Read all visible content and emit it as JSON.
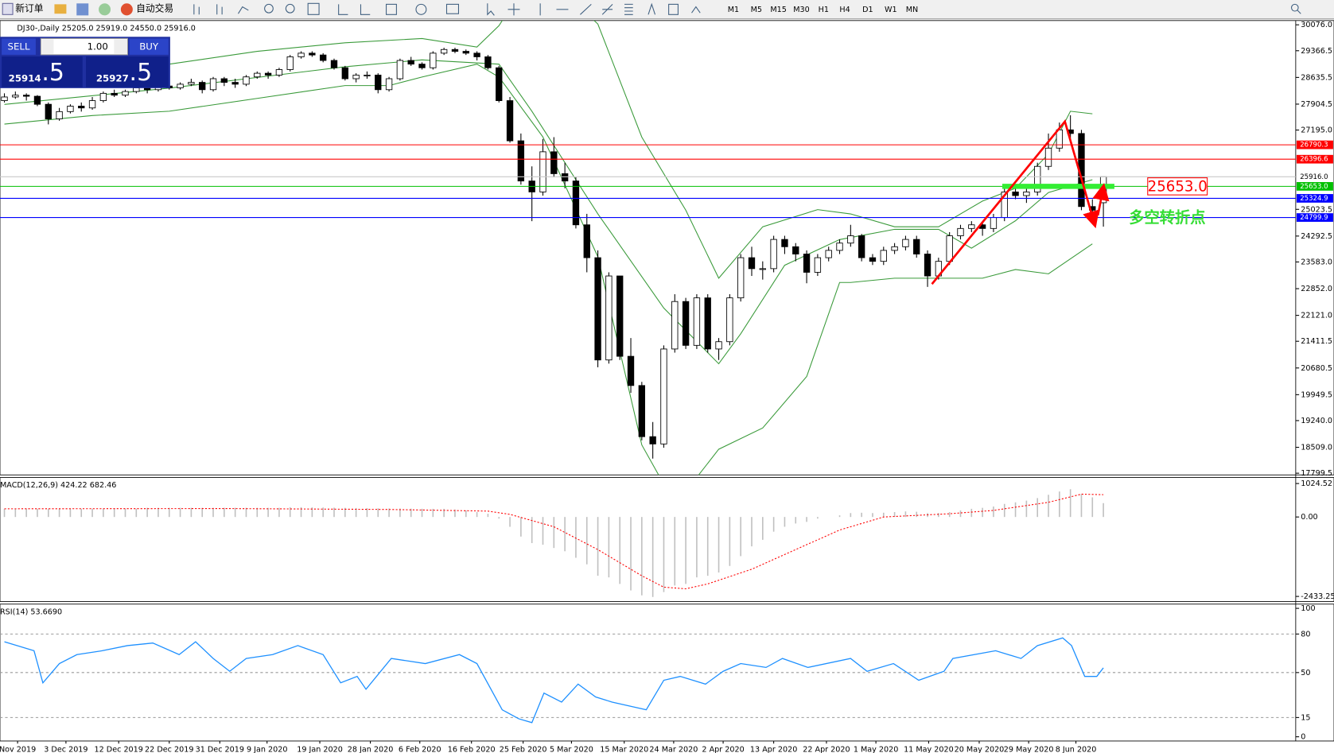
{
  "toolbar": {
    "new_order": "新订单",
    "auto_trading": "自动交易",
    "timeframes": [
      "M1",
      "M5",
      "M15",
      "M30",
      "H1",
      "H4",
      "D1",
      "W1",
      "MN"
    ]
  },
  "trade_panel": {
    "sell": "SELL",
    "lot": "1.00",
    "buy": "BUY",
    "sell_price": [
      "25914",
      ".5"
    ],
    "buy_price": [
      "25927",
      ".5"
    ]
  },
  "chart_data": [
    {
      "type": "candlestick",
      "title": "DJ30-,Daily  25205.0 25919.0 24550.0 25916.0",
      "xlim": [
        -0.4,
        117.5
      ],
      "ylim": [
        17753,
        30193
      ],
      "open": [
        28000,
        28100,
        28150,
        28120,
        27900,
        27500,
        27700,
        27850,
        27800,
        28000,
        28200,
        28150,
        28250,
        28350,
        28300,
        28400,
        28350,
        28450,
        28500,
        28300,
        28600,
        28500,
        28450,
        28650,
        28750,
        28700,
        28850,
        29200,
        29300,
        29250,
        29100,
        28900,
        28600,
        28700,
        28700,
        28300,
        28600,
        29100,
        29000,
        28900,
        29300,
        29400,
        29350,
        29300,
        29200,
        28900,
        28000,
        26900,
        25800,
        25500,
        26600,
        26000,
        25800,
        24600,
        23700,
        20900,
        23200,
        21000,
        20200,
        18800,
        18600,
        21200,
        22500,
        21300,
        22600,
        21200,
        21400,
        22600,
        23700,
        23400,
        23400,
        24200,
        24000,
        23800,
        23300,
        23700,
        23900,
        24100,
        24300,
        23700,
        23600,
        23900,
        24000,
        24200,
        23800,
        23200,
        23600,
        24300,
        24500,
        24600,
        24500,
        24800,
        25500,
        25400,
        25500,
        26200,
        26700,
        27200,
        27100,
        25100,
        25205
      ],
      "high": [
        28200,
        28250,
        28200,
        28150,
        27950,
        27800,
        27900,
        27950,
        28100,
        28250,
        28300,
        28300,
        28400,
        28400,
        28450,
        28450,
        28500,
        28600,
        28550,
        28650,
        28650,
        28600,
        28700,
        28800,
        28800,
        28900,
        29250,
        29350,
        29350,
        29300,
        29150,
        28950,
        28750,
        28800,
        28750,
        28650,
        29150,
        29200,
        29050,
        29350,
        29450,
        29450,
        29400,
        29350,
        29250,
        28950,
        28100,
        27100,
        26200,
        26950,
        27000,
        26300,
        25900,
        24900,
        23900,
        23300,
        23200,
        21500,
        20300,
        19200,
        21300,
        22700,
        22600,
        22700,
        22700,
        21500,
        22700,
        23800,
        24000,
        23600,
        24300,
        24300,
        24100,
        23900,
        23800,
        24000,
        24200,
        24600,
        24350,
        23800,
        24000,
        24100,
        24300,
        24300,
        23900,
        23700,
        24400,
        24600,
        24700,
        24700,
        24900,
        25600,
        25700,
        25600,
        26300,
        27100,
        27400,
        27600,
        27200,
        25300,
        25919
      ],
      "low": [
        27950,
        28050,
        28000,
        27850,
        27350,
        27450,
        27650,
        27700,
        27750,
        27950,
        28100,
        28100,
        28200,
        28200,
        28250,
        28300,
        28300,
        28400,
        28200,
        28250,
        28400,
        28350,
        28400,
        28600,
        28600,
        28650,
        28800,
        29150,
        29200,
        29050,
        28850,
        28550,
        28500,
        28600,
        28200,
        28250,
        28550,
        28950,
        28850,
        28850,
        29250,
        29300,
        29250,
        29100,
        28850,
        27950,
        26850,
        25700,
        24700,
        25400,
        25900,
        25600,
        24500,
        23300,
        20700,
        20800,
        20900,
        20000,
        18700,
        18200,
        18500,
        21100,
        21200,
        21200,
        21100,
        20900,
        21300,
        22500,
        23200,
        23100,
        23300,
        23800,
        23600,
        23000,
        23200,
        23600,
        23800,
        24000,
        23600,
        23500,
        23500,
        23800,
        23900,
        23700,
        22900,
        23100,
        23500,
        24200,
        24400,
        24300,
        24400,
        24700,
        25300,
        25200,
        25400,
        26100,
        26600,
        26900,
        25000,
        24700,
        24550
      ],
      "close": [
        28100,
        28150,
        28120,
        27900,
        27500,
        27700,
        27850,
        27800,
        28000,
        28200,
        28150,
        28250,
        28350,
        28300,
        28400,
        28350,
        28450,
        28500,
        28300,
        28600,
        28500,
        28450,
        28650,
        28750,
        28700,
        28850,
        29200,
        29300,
        29250,
        29100,
        28900,
        28600,
        28700,
        28700,
        28300,
        28600,
        29100,
        29000,
        28900,
        29300,
        29400,
        29350,
        29300,
        29200,
        28900,
        28000,
        26900,
        25800,
        25500,
        26600,
        26000,
        25800,
        24600,
        23700,
        20900,
        23200,
        21000,
        20200,
        18800,
        18600,
        21200,
        22500,
        21300,
        22600,
        21200,
        21400,
        22600,
        23700,
        23400,
        23400,
        24200,
        24000,
        23800,
        23300,
        23700,
        23900,
        24100,
        24300,
        23700,
        23600,
        23900,
        24000,
        24200,
        23800,
        23200,
        23600,
        24300,
        24500,
        24600,
        24500,
        24800,
        25500,
        25400,
        25500,
        26200,
        26700,
        27200,
        27100,
        25100,
        25000,
        25916
      ],
      "yticks": [
        {
          "value": 30076,
          "label": "30076.0"
        },
        {
          "value": 29366.5,
          "label": "29366.5"
        },
        {
          "value": 28635.5,
          "label": "28635.5"
        },
        {
          "value": 27904.5,
          "label": "27904.5"
        },
        {
          "value": 27195,
          "label": "27195.0"
        },
        {
          "value": 25023.5,
          "label": "25023.5"
        },
        {
          "value": 24292.5,
          "label": "24292.5"
        },
        {
          "value": 23583,
          "label": "23583.0"
        },
        {
          "value": 22852,
          "label": "22852.0"
        },
        {
          "value": 22121,
          "label": "22121.0"
        },
        {
          "value": 21411.5,
          "label": "21411.5"
        },
        {
          "value": 20680.5,
          "label": "20680.5"
        },
        {
          "value": 19949.5,
          "label": "19949.5"
        },
        {
          "value": 19240,
          "label": "19240.0"
        },
        {
          "value": 18509,
          "label": "18509.0"
        },
        {
          "value": 17799.5,
          "label": "17799.5"
        }
      ],
      "xticks": [
        {
          "value": 1.2,
          "label": "Nov 2019"
        },
        {
          "value": 5.6,
          "label": "3 Dec 2019"
        },
        {
          "value": 10.4,
          "label": "12 Dec 2019"
        },
        {
          "value": 15,
          "label": "22 Dec 2019"
        },
        {
          "value": 19.6,
          "label": "31 Dec 2019"
        },
        {
          "value": 23.9,
          "label": "9 Jan 2020"
        },
        {
          "value": 28.7,
          "label": "19 Jan 2020"
        },
        {
          "value": 33.3,
          "label": "28 Jan 2020"
        },
        {
          "value": 37.8,
          "label": "6 Feb 2020"
        },
        {
          "value": 42.5,
          "label": "16 Feb 2020"
        },
        {
          "value": 47.2,
          "label": "25 Feb 2020"
        },
        {
          "value": 51.6,
          "label": "5 Mar 2020"
        },
        {
          "value": 56.4,
          "label": "15 Mar 2020"
        },
        {
          "value": 60.9,
          "label": "24 Mar 2020"
        },
        {
          "value": 65.4,
          "label": "2 Apr 2020"
        },
        {
          "value": 70,
          "label": "13 Apr 2020"
        },
        {
          "value": 74.8,
          "label": "22 Apr 2020"
        },
        {
          "value": 79.3,
          "label": "1 May 2020"
        },
        {
          "value": 84.1,
          "label": "11 May 2020"
        },
        {
          "value": 88.7,
          "label": "20 May 2020"
        },
        {
          "value": 93.2,
          "label": "29 May 2020"
        },
        {
          "value": 97.5,
          "label": "8 Jun 2020"
        }
      ],
      "overlays": [
        {
          "color": "#3a9a3a",
          "x": [
            0,
            8,
            15,
            23,
            31,
            38,
            43,
            45,
            46,
            50,
            54,
            58,
            62,
            65,
            69,
            74,
            77,
            81,
            85,
            89,
            92,
            95,
            97,
            99
          ],
          "values": [
            28412,
            28530,
            28998,
            29349,
            29584,
            29701,
            29467,
            30053,
            30521,
            31200,
            30100,
            27000,
            25000,
            23140,
            24546,
            25015,
            24898,
            24546,
            24546,
            25249,
            25601,
            26538,
            27710,
            27640
          ]
        },
        {
          "color": "#3a9a3a",
          "x": [
            0,
            15,
            31,
            38,
            45,
            48,
            54,
            60,
            65,
            67,
            71,
            76,
            81,
            85,
            88,
            92,
            95,
            99
          ],
          "values": [
            27897,
            28342,
            28928,
            29115,
            28998,
            27710,
            24900,
            22321,
            20796,
            21618,
            23492,
            24195,
            24476,
            24476,
            23961,
            24711,
            25484,
            25835
          ]
        },
        {
          "color": "#3a9a3a",
          "x": [
            0,
            8,
            15,
            23,
            31,
            35,
            38,
            43,
            45,
            49,
            54,
            58,
            60,
            62,
            65,
            69,
            73,
            76,
            77,
            81,
            85,
            89,
            92,
            95,
            99
          ],
          "values": [
            27358,
            27592,
            27710,
            28061,
            28412,
            28412,
            28647,
            28998,
            28647,
            27007,
            23727,
            18572,
            17500,
            17300,
            18455,
            19040,
            20446,
            23023,
            23023,
            23140,
            23140,
            23140,
            23375,
            23258,
            24078
          ]
        }
      ],
      "levels": [
        {
          "value": 26790.3,
          "color": "#ff0000"
        },
        {
          "value": 26396.6,
          "color": "#ff0000"
        },
        {
          "value": 25916,
          "label": "25916.0",
          "color": "#c8c8c8"
        },
        {
          "value": 25653,
          "label": "25653.0",
          "color": "#00c000"
        },
        {
          "value": 25324.9,
          "color": "#0000ff"
        },
        {
          "value": 24799.9,
          "color": "#0000ff"
        }
      ],
      "zone": {
        "from": 90.8,
        "to": 101,
        "value": 25653,
        "color": "#33ee33"
      },
      "marker_label": {
        "value": 25653,
        "label": "25653.0",
        "color": "#ff0000"
      },
      "note": "多空转折点",
      "arrows": [
        {
          "color": "#ff0000",
          "x": [
            84.4,
            96.5,
            99.2
          ],
          "values": [
            22977,
            27428,
            24617
          ]
        },
        {
          "color": "#ff0000",
          "x": [
            99.5,
            100
          ],
          "values": [
            24860,
            25630
          ]
        }
      ]
    },
    {
      "type": "histogram",
      "title": "MACD(12,26,9) 424.22 682.46",
      "color": "#c0c0c0",
      "values": [
        250,
        250,
        250,
        250,
        250,
        250,
        250,
        250,
        250,
        250,
        250,
        250,
        250,
        280,
        280,
        280,
        280,
        280,
        280,
        280,
        280,
        280,
        280,
        280,
        280,
        280,
        300,
        300,
        295,
        290,
        285,
        280,
        275,
        270,
        265,
        260,
        258,
        255,
        252,
        250,
        250,
        230,
        200,
        150,
        100,
        -50,
        -300,
        -600,
        -800,
        -850,
        -950,
        -1050,
        -1250,
        -1450,
        -1800,
        -1850,
        -2050,
        -2250,
        -2400,
        -2450,
        -2300,
        -2100,
        -2050,
        -1850,
        -1800,
        -1700,
        -1500,
        -1200,
        -900,
        -700,
        -450,
        -300,
        -200,
        -150,
        -50,
        0,
        50,
        120,
        130,
        120,
        130,
        150,
        170,
        160,
        120,
        120,
        150,
        200,
        250,
        280,
        320,
        400,
        450,
        500,
        580,
        680,
        780,
        850,
        700,
        600,
        424.22
      ],
      "signal": {
        "color": "#ff0000",
        "x": [
          0,
          20,
          35,
          44,
          46,
          50,
          54,
          58,
          60,
          62,
          64,
          68,
          72,
          76,
          80,
          86,
          90,
          95,
          98,
          100
        ],
        "values": [
          250,
          260,
          230,
          180,
          80,
          -300,
          -1000,
          -1800,
          -2150,
          -2200,
          -2050,
          -1600,
          -1000,
          -400,
          0,
          100,
          200,
          450,
          700,
          682.46
        ]
      },
      "ylim": [
        -2590,
        1210
      ],
      "yticks": [
        1024.52,
        {
          "value": 0,
          "label": "0.00"
        },
        -2433.25
      ]
    },
    {
      "type": "line",
      "title": "RSI(14) 53.6690",
      "color": "#1e90ff",
      "x": [
        0,
        2.7,
        3.5,
        5,
        6.6,
        8.9,
        11.2,
        13.5,
        15.9,
        17.4,
        19,
        20.5,
        22,
        24.4,
        26.7,
        29,
        30.6,
        32.1,
        32.9,
        35.2,
        38.3,
        41.4,
        43,
        45.3,
        46.8,
        48,
        49.1,
        50.7,
        52.2,
        53.8,
        55.3,
        58.4,
        60,
        61.5,
        63.8,
        65.4,
        67,
        69.3,
        70.8,
        73.1,
        77,
        78.5,
        80.9,
        83.2,
        85.5,
        86.3,
        90.2,
        92.5,
        94,
        96.3,
        97.1,
        98.3,
        99.4,
        100
      ],
      "values": [
        74,
        67,
        42,
        57,
        64,
        67,
        71,
        73,
        64,
        74,
        61,
        51,
        61,
        64,
        71,
        64,
        42,
        47,
        37,
        61,
        57,
        64,
        57,
        21,
        14,
        11,
        34,
        27,
        41,
        31,
        27,
        21,
        44,
        47,
        41,
        51,
        57,
        54,
        61,
        54,
        61,
        51,
        57,
        44,
        51,
        61,
        67,
        61,
        71,
        77,
        71,
        47,
        47,
        53.669
      ],
      "ylim": [
        -3.3,
        103.3
      ],
      "yticks": [
        100,
        80,
        50,
        15,
        0
      ],
      "levels": [
        80,
        50,
        15
      ]
    }
  ]
}
